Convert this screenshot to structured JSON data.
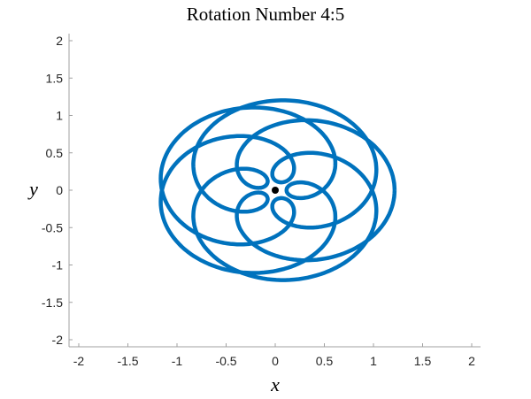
{
  "chart_data": {
    "type": "line",
    "title": "Rotation Number 4:5",
    "xlabel": "x",
    "ylabel": "y",
    "xlim": [
      -2.1,
      2.1
    ],
    "ylim": [
      -2.1,
      2.1
    ],
    "xticks": [
      -2,
      -1.5,
      -1,
      -0.5,
      0,
      0.5,
      1,
      1.5,
      2
    ],
    "yticks": [
      -2,
      -1.5,
      -1,
      -0.5,
      0,
      0.5,
      1,
      1.5,
      2
    ],
    "xtick_labels": [
      "-2",
      "-1.5",
      "-1",
      "-0.5",
      "0",
      "0.5",
      "1",
      "1.5",
      "2"
    ],
    "ytick_labels": [
      "-2",
      "-1.5",
      "-1",
      "-0.5",
      "0",
      "0.5",
      "1",
      "1.5",
      "2"
    ],
    "grid": false,
    "legend": null,
    "series": [
      {
        "name": "orbit",
        "color": "#0072BD",
        "description": "5-fold symmetric closed trajectory with 5 outer lobes (max radius ~1.6) and 5 inner loops",
        "lobe_extremes": [
          {
            "x": 1.6,
            "y": 0.0
          },
          {
            "x": 0.35,
            "y": 1.55
          },
          {
            "x": -1.4,
            "y": 0.7
          },
          {
            "x": -1.4,
            "y": -0.7
          },
          {
            "x": 0.35,
            "y": -1.55
          }
        ]
      },
      {
        "name": "center",
        "color": "#000000",
        "type": "scatter",
        "points": [
          {
            "x": 0,
            "y": 0
          }
        ]
      }
    ]
  }
}
